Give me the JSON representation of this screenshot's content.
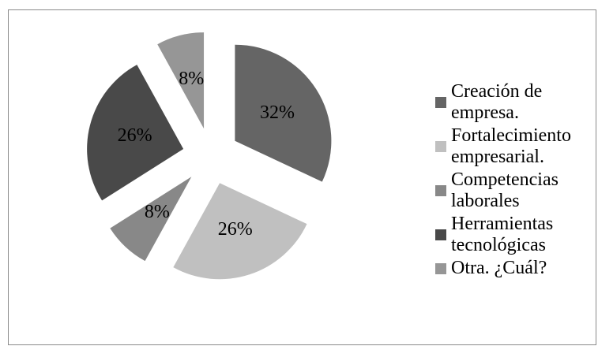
{
  "chart_data": {
    "type": "pie",
    "exploded": true,
    "legend_position": "right",
    "slices": [
      {
        "label": "Creación de empresa.",
        "value": 32,
        "data_label": "32%",
        "color": "#656565"
      },
      {
        "label": "Fortalecimiento empresarial.",
        "value": 26,
        "data_label": "26%",
        "color": "#c0c0c0"
      },
      {
        "label": "Competencias laborales",
        "value": 8,
        "data_label": "8%",
        "color": "#888888"
      },
      {
        "label": "Herramientas tecnológicas",
        "value": 26,
        "data_label": "26%",
        "color": "#494949"
      },
      {
        "label": "Otra. ¿Cuál?",
        "value": 8,
        "data_label": "8%",
        "color": "#969696"
      }
    ]
  }
}
